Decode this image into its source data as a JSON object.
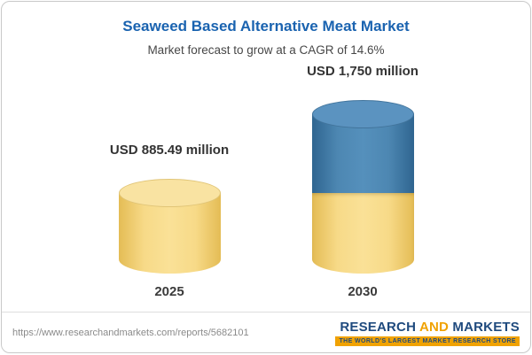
{
  "header": {
    "title": "Seaweed Based Alternative Meat Market",
    "subtitle": "Market forecast to grow at a CAGR of 14.6%"
  },
  "chart_data": {
    "type": "bar",
    "title": "Seaweed Based Alternative Meat Market",
    "subtitle": "Market forecast to grow at a CAGR of 14.6%",
    "categories": [
      "2025",
      "2030"
    ],
    "values": [
      885.49,
      1750
    ],
    "value_labels": [
      "USD 885.49 million",
      "USD 1,750 million"
    ],
    "unit": "USD million",
    "cagr": "14.6%",
    "legend": false,
    "gridlines": false,
    "layout_note": "3D cylinder bars; 2030 bar stacked: yellow base equals 2025 value, blue top is growth portion",
    "colors": {
      "yellow_bar": "#F2CF6F",
      "blue_bar": "#447FAC",
      "title_blue": "#1A63B0"
    }
  },
  "bars": [
    {
      "year": "2025",
      "label": "USD 885.49 million"
    },
    {
      "year": "2030",
      "label": "USD 1,750 million"
    }
  ],
  "footer": {
    "url": "https://www.researchandmarkets.com/reports/5682101",
    "logo_research": "RESEARCH",
    "logo_and": "AND",
    "logo_markets": "MARKETS",
    "tagline": "THE WORLD'S LARGEST MARKET RESEARCH STORE"
  }
}
